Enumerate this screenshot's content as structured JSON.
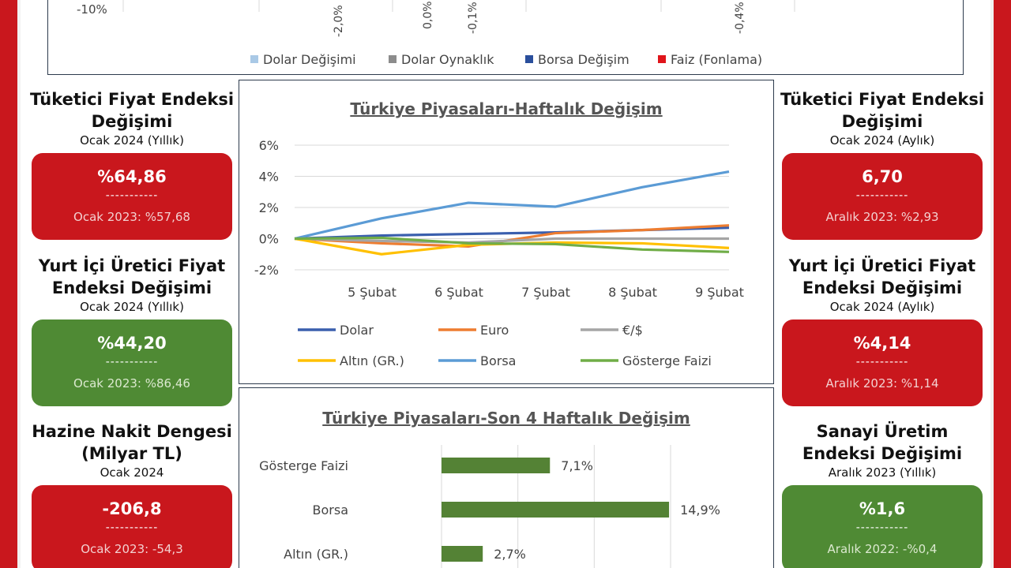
{
  "top_chart": {
    "ytick": "-10%",
    "labels": [
      "-2,0%",
      "0,0%",
      "-0,1%",
      "-0,4%"
    ],
    "legend": [
      {
        "name": "Dolar Değişimi",
        "color": "#a9c9e6"
      },
      {
        "name": "Dolar Oynaklık",
        "color": "#8c8c8c"
      },
      {
        "name": "Borsa Değişim",
        "color": "#2a4f9c"
      },
      {
        "name": "Faiz (Fonlama)",
        "color": "#e0151b"
      }
    ]
  },
  "left": [
    {
      "title_1": "Tüketici Fiyat Endeksi",
      "title_2": "Değişimi",
      "subtitle": "Ocak 2024 (Yıllık)",
      "value": "%64,86",
      "dash": "-----------",
      "prev": "Ocak 2023: %57,68",
      "color": "red"
    },
    {
      "title_1": "Yurt İçi Üretici Fiyat",
      "title_2": "Endeksi Değişimi",
      "subtitle": "Ocak 2024 (Yıllık)",
      "value": "%44,20",
      "dash": "-----------",
      "prev": "Ocak 2023: %86,46",
      "color": "green"
    },
    {
      "title_1": "Hazine Nakit Dengesi",
      "title_2": "(Milyar TL)",
      "subtitle": "Ocak 2024",
      "value": "-206,8",
      "dash": "-----------",
      "prev": "Ocak 2023: -54,3",
      "color": "red"
    }
  ],
  "right": [
    {
      "title_1": "Tüketici Fiyat Endeksi",
      "title_2": "Değişimi",
      "subtitle": "Ocak 2024 (Aylık)",
      "value": "6,70",
      "dash": "-----------",
      "prev": "Aralık 2023: %2,93",
      "color": "red"
    },
    {
      "title_1": "Yurt İçi Üretici Fiyat",
      "title_2": "Endeksi Değişimi",
      "subtitle": "Ocak 2024 (Aylık)",
      "value": "%4,14",
      "dash": "-----------",
      "prev": "Aralık 2023: %1,14",
      "color": "red"
    },
    {
      "title_1": "Sanayi Üretim",
      "title_2": "Endeksi Değişimi",
      "subtitle": "Aralık 2023 (Yıllık)",
      "value": "%1,6",
      "dash": "-----------",
      "prev": "Aralık 2022: -%0,4",
      "color": "green"
    }
  ],
  "chart_data": [
    {
      "type": "line",
      "title": "Türkiye Piyasaları-Haftalık Değişim",
      "x": [
        "",
        "5 Şubat",
        "6 Şubat",
        "7 Şubat",
        "8 Şubat",
        "9 Şubat"
      ],
      "ylim": [
        -2,
        6
      ],
      "yticks": [
        "6%",
        "4%",
        "2%",
        "0%",
        "-2%"
      ],
      "grid": true,
      "legend_position": "bottom",
      "series": [
        {
          "name": "Dolar",
          "color": "#3a5fad",
          "values": [
            0,
            0.2,
            0.3,
            0.4,
            0.55,
            0.7
          ]
        },
        {
          "name": "Euro",
          "color": "#ed7d31",
          "values": [
            0,
            -0.3,
            -0.5,
            0.35,
            0.55,
            0.85
          ]
        },
        {
          "name": "€/$",
          "color": "#a5a5a5",
          "values": [
            0,
            -0.15,
            -0.25,
            0.0,
            0.0,
            0.0
          ]
        },
        {
          "name": "Altın (GR.)",
          "color": "#ffc000",
          "values": [
            0,
            -1.0,
            -0.4,
            -0.25,
            -0.3,
            -0.6
          ]
        },
        {
          "name": "Borsa",
          "color": "#5b9bd5",
          "values": [
            0,
            1.3,
            2.3,
            2.05,
            3.3,
            4.3
          ]
        },
        {
          "name": "Gösterge Faizi",
          "color": "#70ad47",
          "values": [
            0,
            0.05,
            -0.3,
            -0.35,
            -0.7,
            -0.85
          ]
        }
      ]
    },
    {
      "type": "bar",
      "title": "Türkiye Piyasaları-Son 4 Haftalık Değişim",
      "categories": [
        "Gösterge Faizi",
        "Borsa",
        "Altın (GR.)"
      ],
      "values": [
        7.1,
        14.9,
        2.7
      ],
      "labels": [
        "7,1%",
        "14,9%",
        "2,7%"
      ],
      "color": "#548235"
    }
  ]
}
